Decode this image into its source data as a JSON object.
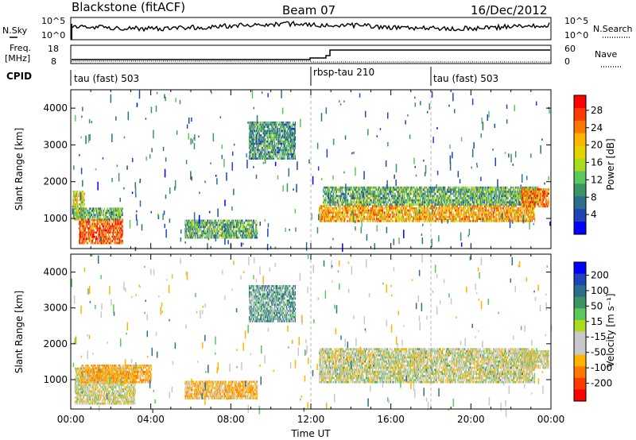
{
  "header": {
    "title_left": "Blackstone (fitACF)",
    "title_center": "Beam 07",
    "title_right": "16/Dec/2012"
  },
  "noise_panel": {
    "left_label": "N.Sky",
    "right_label": "N.Search",
    "left_ticks": [
      "10^5",
      "10^0"
    ],
    "right_ticks": [
      "10^5",
      "10^0"
    ]
  },
  "freq_panel": {
    "left_label_line1": "Freq.",
    "left_label_line2": "[MHz]",
    "right_label": "Nave",
    "left_ticks": [
      "18",
      "8"
    ],
    "right_ticks": [
      "60",
      "0"
    ]
  },
  "cpid": {
    "label": "CPID",
    "segments": [
      {
        "name": "tau (fast) 503",
        "start_hour": 0
      },
      {
        "name": "rbsp-tau 210",
        "start_hour": 12
      },
      {
        "name": "tau (fast) 503",
        "start_hour": 18
      }
    ]
  },
  "chart_data": [
    {
      "type": "heatmap",
      "title": "",
      "xlabel": "",
      "ylabel": "Slant Range [km]",
      "xlim": [
        0,
        24
      ],
      "ylim": [
        180,
        4500
      ],
      "yticks": [
        "1000",
        "2000",
        "3000",
        "4000"
      ],
      "colorbar": {
        "label": "Power [dB]",
        "ticks": [
          "28",
          "24",
          "20",
          "16",
          "12",
          "8",
          "4"
        ],
        "colors": [
          "#ff0000",
          "#ff3c00",
          "#ff7800",
          "#ffb400",
          "#e6d200",
          "#aadc1e",
          "#5ac85a",
          "#3c9664",
          "#2d6e8c",
          "#1e46b4",
          "#0000ff"
        ]
      },
      "echo_regions": [
        {
          "t0": 0.1,
          "t1": 0.7,
          "r0": 950,
          "r1": 1750,
          "value_db": 18
        },
        {
          "t0": 0.4,
          "t1": 2.6,
          "r0": 300,
          "r1": 950,
          "value_db": 26
        },
        {
          "t0": 0.4,
          "t1": 2.6,
          "r0": 950,
          "r1": 1250,
          "value_db": 12
        },
        {
          "t0": 5.7,
          "t1": 9.3,
          "r0": 450,
          "r1": 950,
          "value_db": 12
        },
        {
          "t0": 8.9,
          "t1": 11.2,
          "r0": 2600,
          "r1": 3600,
          "value_db": 10
        },
        {
          "t0": 12.4,
          "t1": 23.2,
          "r0": 900,
          "r1": 1350,
          "value_db": 22
        },
        {
          "t0": 12.6,
          "t1": 23.4,
          "r0": 1350,
          "r1": 1850,
          "value_db": 12
        },
        {
          "t0": 22.5,
          "t1": 23.9,
          "r0": 1300,
          "r1": 1800,
          "value_db": 24
        }
      ]
    },
    {
      "type": "heatmap",
      "title": "",
      "xlabel": "Time UT",
      "ylabel": "Slant Range [km]",
      "xlim": [
        0,
        24
      ],
      "ylim": [
        180,
        4500
      ],
      "xticks": [
        "00:00",
        "04:00",
        "08:00",
        "12:00",
        "16:00",
        "20:00",
        "00:00"
      ],
      "yticks": [
        "1000",
        "2000",
        "3000",
        "4000"
      ],
      "colorbar": {
        "label": "Velocity [m s⁻¹]",
        "ticks": [
          "200",
          "100",
          "50",
          "15",
          "-15",
          "-50",
          "-100",
          "-200"
        ],
        "colors": [
          "#0000ff",
          "#1e46b4",
          "#2d6e8c",
          "#3c9664",
          "#5ac85a",
          "#aadc1e",
          "#c8c8c8",
          "#c8c8c8",
          "#ffb400",
          "#ff7800",
          "#ff3c00",
          "#ff0000"
        ]
      },
      "echo_regions": [
        {
          "t0": 0.2,
          "t1": 3.2,
          "r0": 300,
          "r1": 1300,
          "value_ms": -5
        },
        {
          "t0": 0.5,
          "t1": 4.0,
          "r0": 900,
          "r1": 1400,
          "value_ms": -40
        },
        {
          "t0": 5.7,
          "t1": 9.3,
          "r0": 450,
          "r1": 950,
          "value_ms": -30
        },
        {
          "t0": 8.9,
          "t1": 11.2,
          "r0": 2600,
          "r1": 3600,
          "value_ms": 30
        },
        {
          "t0": 12.4,
          "t1": 23.2,
          "r0": 900,
          "r1": 1850,
          "value_ms": 0
        },
        {
          "t0": 22.5,
          "t1": 23.9,
          "r0": 1300,
          "r1": 1800,
          "value_ms": -5
        }
      ]
    }
  ]
}
